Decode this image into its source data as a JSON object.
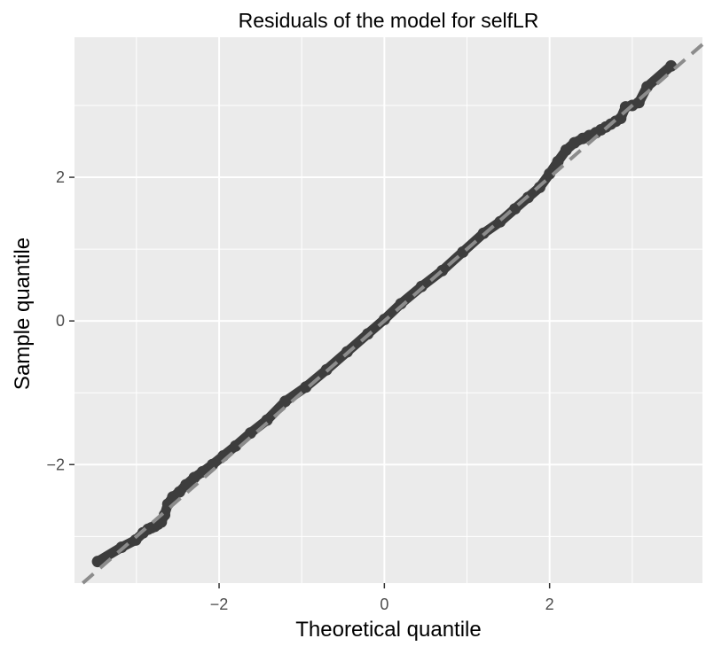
{
  "chart_data": {
    "type": "scatter",
    "title": "Residuals of the model for selfLR",
    "xlabel": "Theoretical quantile",
    "ylabel": "Sample quantile",
    "xlim": [
      -3.75,
      3.85
    ],
    "ylim": [
      -3.65,
      3.95
    ],
    "x_ticks": [
      -2,
      0,
      2
    ],
    "y_ticks": [
      -2,
      0,
      2
    ],
    "x_tick_labels": [
      "−2",
      "0",
      "2"
    ],
    "y_tick_labels": [
      "−2",
      "0",
      "2"
    ],
    "grid": true,
    "legend": "none",
    "reference_line": {
      "slope": 1.0,
      "intercept": 0.0,
      "style": "dashed",
      "color": "#8c8c8c"
    },
    "colors": {
      "panel_background": "#ebebeb",
      "grid": "#ffffff",
      "points": "#3d3d3d"
    },
    "series": [
      {
        "x": [
          -3.47,
          -3.18,
          -3.01,
          -2.92,
          -2.86,
          -2.82,
          -2.78,
          -2.74,
          -2.7,
          -2.66,
          -2.62,
          -2.56,
          -2.48,
          -2.4,
          -2.3,
          -2.2,
          -2.08,
          -1.95,
          -1.8,
          -1.62,
          -1.42,
          -1.2,
          -0.95,
          -0.7,
          -0.45,
          -0.2,
          0.0,
          0.2,
          0.45,
          0.7,
          0.95,
          1.2,
          1.4,
          1.58,
          1.74,
          1.88,
          2.0,
          2.1,
          2.2,
          2.3,
          2.4,
          2.48,
          2.56,
          2.62,
          2.68,
          2.74,
          2.8,
          2.86,
          2.92,
          3.0,
          3.08,
          3.18,
          3.47
        ],
        "y": [
          -3.35,
          -3.15,
          -3.05,
          -2.95,
          -2.9,
          -2.88,
          -2.86,
          -2.83,
          -2.8,
          -2.7,
          -2.55,
          -2.45,
          -2.38,
          -2.28,
          -2.18,
          -2.1,
          -2.0,
          -1.88,
          -1.74,
          -1.56,
          -1.38,
          -1.12,
          -0.92,
          -0.68,
          -0.43,
          -0.18,
          0.02,
          0.24,
          0.48,
          0.7,
          0.96,
          1.22,
          1.38,
          1.56,
          1.72,
          1.86,
          2.05,
          2.22,
          2.38,
          2.48,
          2.54,
          2.58,
          2.62,
          2.66,
          2.7,
          2.74,
          2.78,
          2.82,
          2.98,
          3.0,
          3.04,
          3.26,
          3.55
        ]
      }
    ]
  }
}
